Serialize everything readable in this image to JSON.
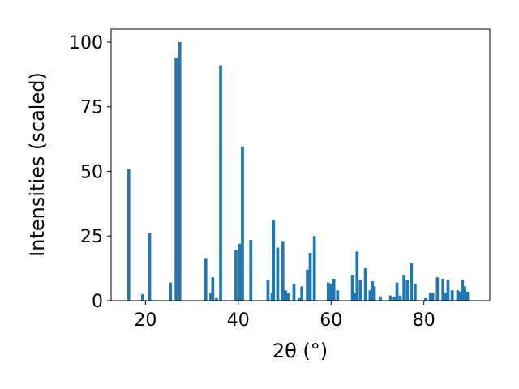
{
  "chart_data": {
    "type": "bar",
    "xlabel": "2θ (°)",
    "ylabel": "Intensities (scaled)",
    "xlim": [
      12.6,
      94.2
    ],
    "ylim": [
      0,
      105
    ],
    "xticks": [
      20,
      40,
      60,
      80
    ],
    "yticks": [
      0,
      25,
      50,
      75,
      100
    ],
    "bar_color": "#1f77b4",
    "bar_width": 0.65,
    "grid": false,
    "legend": "none",
    "x": [
      16.4,
      19.4,
      20.9,
      25.4,
      26.6,
      27.4,
      33.0,
      34.1,
      34.5,
      35.3,
      36.2,
      39.5,
      40.3,
      40.9,
      42.7,
      46.4,
      47.3,
      47.6,
      48.5,
      49.6,
      50.2,
      50.7,
      52.0,
      53.2,
      53.7,
      54.9,
      55.5,
      56.4,
      59.4,
      59.9,
      60.6,
      61.4,
      64.6,
      65.1,
      65.6,
      66.3,
      67.4,
      68.4,
      68.9,
      69.3,
      70.6,
      72.8,
      73.6,
      74.2,
      74.9,
      75.7,
      76.4,
      77.3,
      78.1,
      80.4,
      81.4,
      81.9,
      82.9,
      84.1,
      84.6,
      85.2,
      86.1,
      87.3,
      87.9,
      88.3,
      88.8,
      89.4
    ],
    "values": [
      51,
      2.5,
      26,
      7,
      94,
      100,
      16.5,
      3,
      9,
      1,
      91,
      19.5,
      22,
      59.5,
      23.5,
      8,
      3,
      31,
      20.5,
      23,
      4,
      3,
      6.5,
      1,
      5.5,
      12,
      18.5,
      25,
      7,
      6.5,
      8.5,
      4,
      10,
      3,
      19,
      8,
      12.5,
      4,
      7.5,
      5.5,
      1.5,
      2,
      1.5,
      7,
      2,
      10,
      8,
      14.5,
      6.5,
      1,
      3,
      3,
      9,
      8.5,
      3,
      8,
      4,
      4,
      3.5,
      8,
      5.5,
      3.5
    ]
  }
}
